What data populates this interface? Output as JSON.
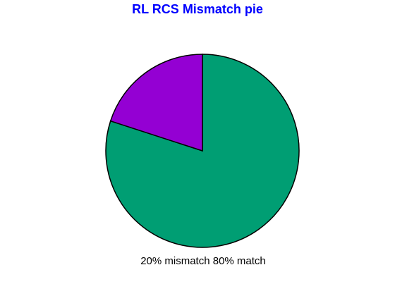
{
  "chart_data": {
    "type": "pie",
    "title": "RL RCS Mismatch  pie",
    "slices": [
      {
        "label": "mismatch",
        "value": 20,
        "color": "#9400d3"
      },
      {
        "label": "match",
        "value": 80,
        "color": "#009e73"
      }
    ],
    "legend_text": "20% mismatch  80% match"
  },
  "colors": {
    "title": "#0000ff",
    "outline": "#000000",
    "background": "#ffffff"
  }
}
